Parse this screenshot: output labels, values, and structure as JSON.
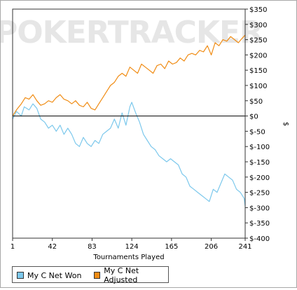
{
  "watermark": "POKERTRACKER",
  "chart_data": {
    "type": "line",
    "xlabel": "Tournaments Played",
    "ylabel": "$",
    "x_ticks": [
      1,
      42,
      83,
      124,
      165,
      206,
      241
    ],
    "xlim": [
      1,
      241
    ],
    "ylim": [
      -400,
      350
    ],
    "y_ticks": [
      "$350",
      "$300",
      "$250",
      "$200",
      "$150",
      "$100",
      "$50",
      "$0",
      "$-50",
      "$-100",
      "$-150",
      "$-200",
      "$-250",
      "$-300",
      "$-350",
      "$-400"
    ],
    "y_tick_values": [
      350,
      300,
      250,
      200,
      150,
      100,
      50,
      0,
      -50,
      -100,
      -150,
      -200,
      -250,
      -300,
      -350,
      -400
    ],
    "grid": false,
    "legend_position": "bottom",
    "series": [
      {
        "name": "My C Net Won",
        "color": "#7cc8ec",
        "x": [
          1,
          5,
          10,
          13,
          18,
          22,
          26,
          30,
          34,
          38,
          42,
          46,
          50,
          54,
          58,
          62,
          66,
          70,
          74,
          78,
          82,
          86,
          90,
          94,
          98,
          102,
          106,
          110,
          114,
          118,
          122,
          124,
          128,
          132,
          136,
          140,
          144,
          148,
          152,
          156,
          160,
          164,
          168,
          172,
          176,
          180,
          184,
          188,
          192,
          196,
          200,
          204,
          208,
          212,
          216,
          220,
          224,
          228,
          232,
          236,
          240,
          241
        ],
        "values": [
          -10,
          15,
          0,
          30,
          20,
          40,
          25,
          -10,
          -20,
          -40,
          -30,
          -50,
          -30,
          -60,
          -40,
          -60,
          -90,
          -100,
          -70,
          -90,
          -100,
          -80,
          -90,
          -60,
          -50,
          -40,
          -10,
          -40,
          10,
          -30,
          30,
          45,
          10,
          -20,
          -60,
          -80,
          -100,
          -110,
          -130,
          -140,
          -150,
          -140,
          -150,
          -160,
          -190,
          -200,
          -230,
          -240,
          -250,
          -260,
          -270,
          -280,
          -240,
          -250,
          -220,
          -190,
          -200,
          -210,
          -240,
          -250,
          -270,
          -295
        ]
      },
      {
        "name": "My C Net Adjusted",
        "color": "#f08c14",
        "x": [
          1,
          5,
          10,
          14,
          18,
          22,
          26,
          30,
          34,
          38,
          42,
          46,
          50,
          54,
          58,
          62,
          66,
          70,
          74,
          78,
          82,
          86,
          90,
          94,
          98,
          102,
          106,
          110,
          114,
          118,
          122,
          126,
          130,
          134,
          138,
          142,
          146,
          150,
          154,
          158,
          162,
          166,
          170,
          174,
          178,
          182,
          186,
          190,
          194,
          198,
          202,
          206,
          210,
          214,
          218,
          222,
          226,
          230,
          234,
          238,
          241
        ],
        "values": [
          0,
          20,
          40,
          60,
          55,
          70,
          50,
          35,
          40,
          50,
          45,
          60,
          70,
          55,
          50,
          40,
          50,
          35,
          30,
          45,
          25,
          20,
          40,
          60,
          80,
          100,
          110,
          130,
          140,
          130,
          160,
          150,
          140,
          170,
          160,
          150,
          140,
          165,
          170,
          155,
          180,
          170,
          175,
          190,
          180,
          200,
          205,
          200,
          215,
          210,
          230,
          200,
          240,
          230,
          250,
          245,
          260,
          250,
          240,
          255,
          265
        ]
      }
    ]
  }
}
